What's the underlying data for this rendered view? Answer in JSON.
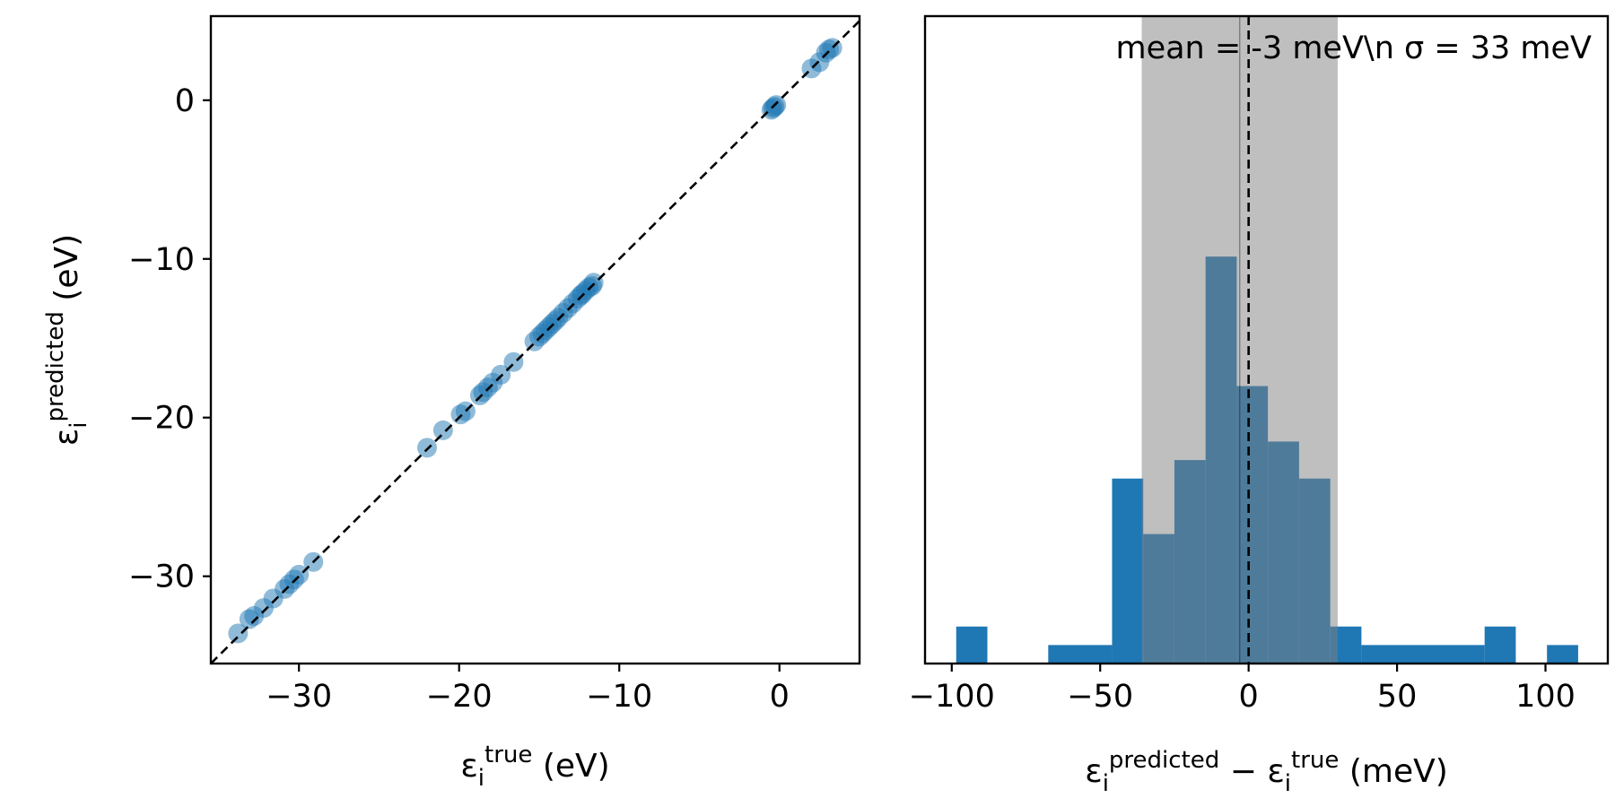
{
  "chart_data": [
    {
      "type": "scatter",
      "panel": "left",
      "xlabel": {
        "symbol": "ε",
        "sub": "i",
        "sup": "true",
        "unit": " (eV)"
      },
      "ylabel": {
        "symbol": "ε",
        "sub": "i",
        "sup": "predicted",
        "unit": " (eV)"
      },
      "xlim": [
        -35.5,
        5
      ],
      "ylim": [
        -35.5,
        5.3
      ],
      "xticks": [
        -30,
        -20,
        -10,
        0
      ],
      "yticks": [
        -30,
        -20,
        -10,
        0
      ],
      "xtick_labels": [
        "−30",
        "−20",
        "−10",
        "0"
      ],
      "ytick_labels": [
        "−30",
        "−20",
        "−10",
        "0"
      ],
      "reference_line": {
        "type": "identity",
        "style": "dashed",
        "color": "#000000"
      },
      "point_color": "#1f77b4",
      "point_alpha": 0.5,
      "points": [
        [
          -33.8,
          -33.6
        ],
        [
          -33.1,
          -32.7
        ],
        [
          -32.8,
          -32.5
        ],
        [
          -32.2,
          -32.0
        ],
        [
          -31.6,
          -31.4
        ],
        [
          -30.9,
          -30.8
        ],
        [
          -30.6,
          -30.5
        ],
        [
          -30.3,
          -30.2
        ],
        [
          -30.0,
          -29.9
        ],
        [
          -29.1,
          -29.1
        ],
        [
          -22.0,
          -21.9
        ],
        [
          -21.0,
          -20.8
        ],
        [
          -19.9,
          -19.8
        ],
        [
          -19.6,
          -19.6
        ],
        [
          -18.7,
          -18.6
        ],
        [
          -18.5,
          -18.4
        ],
        [
          -18.2,
          -18.1
        ],
        [
          -17.9,
          -17.8
        ],
        [
          -17.4,
          -17.3
        ],
        [
          -16.6,
          -16.5
        ],
        [
          -15.3,
          -15.2
        ],
        [
          -15.0,
          -14.9
        ],
        [
          -14.8,
          -14.7
        ],
        [
          -14.6,
          -14.5
        ],
        [
          -14.4,
          -14.3
        ],
        [
          -14.2,
          -14.1
        ],
        [
          -14.0,
          -13.9
        ],
        [
          -13.8,
          -13.7
        ],
        [
          -13.5,
          -13.4
        ],
        [
          -13.2,
          -13.1
        ],
        [
          -12.9,
          -12.8
        ],
        [
          -12.6,
          -12.5
        ],
        [
          -12.4,
          -12.3
        ],
        [
          -12.3,
          -12.2
        ],
        [
          -12.1,
          -12.0
        ],
        [
          -11.9,
          -11.8
        ],
        [
          -11.7,
          -11.7
        ],
        [
          -11.6,
          -11.5
        ],
        [
          -0.5,
          -0.6
        ],
        [
          -0.4,
          -0.5
        ],
        [
          -0.3,
          -0.4
        ],
        [
          -0.2,
          -0.3
        ],
        [
          2.0,
          2.0
        ],
        [
          2.5,
          2.4
        ],
        [
          2.9,
          3.0
        ],
        [
          3.1,
          3.2
        ],
        [
          3.3,
          3.3
        ]
      ]
    },
    {
      "type": "bar",
      "panel": "right",
      "xlabel": {
        "symbol1": "ε",
        "sub1": "i",
        "sup1": "predicted",
        "minus": " − ",
        "symbol2": "ε",
        "sub2": "i",
        "sup2": "true",
        "unit": " (meV)"
      },
      "xlim": [
        -109,
        121
      ],
      "ylim": [
        0,
        35
      ],
      "xticks": [
        -100,
        -50,
        0,
        50,
        100
      ],
      "xtick_labels": [
        "−100",
        "−50",
        "0",
        "50",
        "100"
      ],
      "annotation": "mean = -3 meV\\n σ = 33 meV",
      "mean": -3,
      "sigma": 33,
      "bar_color": "#1f77b4",
      "band_color": "#808080",
      "band_alpha": 0.5,
      "bins": [
        {
          "x0": -98.5,
          "x1": -88.0,
          "count": 2
        },
        {
          "x0": -67.5,
          "x1": -46.0,
          "count": 1
        },
        {
          "x0": -46.0,
          "x1": -35.5,
          "count": 10
        },
        {
          "x0": -35.5,
          "x1": -25.0,
          "count": 7
        },
        {
          "x0": -25.0,
          "x1": -14.5,
          "count": 11
        },
        {
          "x0": -14.5,
          "x1": -4.0,
          "count": 22
        },
        {
          "x0": -4.0,
          "x1": 6.5,
          "count": 15
        },
        {
          "x0": 6.5,
          "x1": 17.0,
          "count": 12
        },
        {
          "x0": 17.0,
          "x1": 27.5,
          "count": 10
        },
        {
          "x0": 27.5,
          "x1": 38.0,
          "count": 2
        },
        {
          "x0": 38.0,
          "x1": 79.5,
          "count": 1
        },
        {
          "x0": 79.5,
          "x1": 90.0,
          "count": 2
        },
        {
          "x0": 100.5,
          "x1": 111.0,
          "count": 1
        }
      ]
    }
  ]
}
